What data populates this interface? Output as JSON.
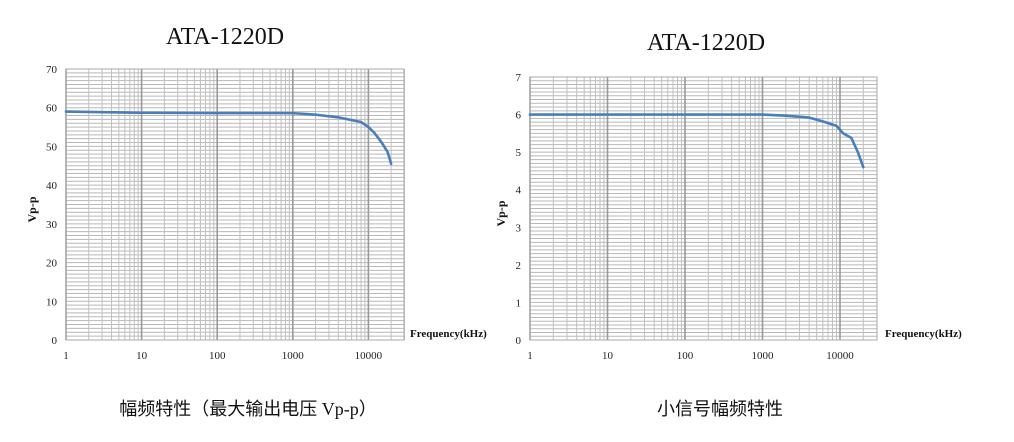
{
  "chart_data": [
    {
      "type": "line",
      "title": "ATA-1220D",
      "caption": "幅频特性（最大输出电压 Vp-p）",
      "xlabel": "Frequency(kHz)",
      "ylabel": "Vp-p",
      "xscale": "log",
      "xlim": [
        1,
        30000
      ],
      "ylim": [
        0,
        70
      ],
      "xticks": [
        "1",
        "10",
        "100",
        "1000",
        "10000"
      ],
      "yticks": [
        "0",
        "10",
        "20",
        "30",
        "40",
        "50",
        "60",
        "70"
      ],
      "grid": true,
      "line_color": "#4a7ebb",
      "series": [
        {
          "x": [
            1,
            10,
            100,
            1000,
            2000,
            4000,
            8000,
            10000,
            12000,
            15000,
            18000,
            20000
          ],
          "y": [
            59,
            58.7,
            58.6,
            58.6,
            58.2,
            57.5,
            56.3,
            55,
            53.5,
            51,
            48.5,
            45.5
          ]
        }
      ]
    },
    {
      "type": "line",
      "title": "ATA-1220D",
      "caption": "小信号幅频特性",
      "xlabel": "Frequency(kHz)",
      "ylabel": "Vp-p",
      "xscale": "log",
      "xlim": [
        1,
        30000
      ],
      "ylim": [
        0,
        7
      ],
      "xticks": [
        "1",
        "10",
        "100",
        "1000",
        "10000"
      ],
      "yticks": [
        "0",
        "1",
        "2",
        "3",
        "4",
        "5",
        "6",
        "7"
      ],
      "grid": true,
      "line_color": "#4a7ebb",
      "series": [
        {
          "x": [
            1,
            10,
            100,
            1000,
            2000,
            4000,
            6000,
            9000,
            11000,
            14000,
            17000,
            20000
          ],
          "y": [
            6,
            6,
            6,
            6,
            5.97,
            5.92,
            5.82,
            5.7,
            5.5,
            5.38,
            5.0,
            4.6
          ]
        }
      ]
    }
  ]
}
